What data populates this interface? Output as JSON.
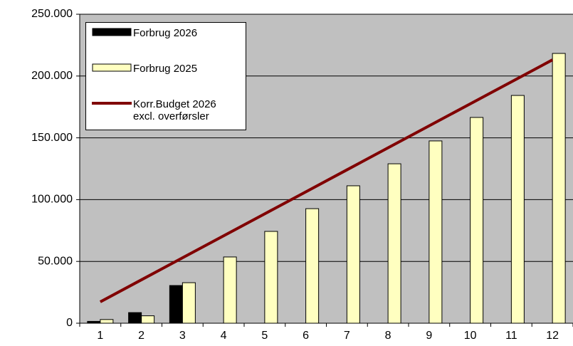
{
  "chart_data": {
    "type": "bar",
    "categories": [
      "1",
      "2",
      "3",
      "4",
      "5",
      "6",
      "7",
      "8",
      "9",
      "10",
      "11",
      "12"
    ],
    "series": [
      {
        "name": "Forbrug 2026",
        "type": "bar",
        "color": "#000000",
        "values": [
          1500,
          8600,
          30500,
          null,
          null,
          null,
          null,
          null,
          null,
          null,
          null,
          null
        ]
      },
      {
        "name": "Forbrug 2025",
        "type": "bar",
        "color": "#ffffc0",
        "values": [
          3000,
          6000,
          32800,
          53600,
          74300,
          92700,
          111200,
          129000,
          147500,
          166500,
          184300,
          218300
        ]
      },
      {
        "name": "Korr.Budget 2026 excl. overførsler",
        "type": "line",
        "color": "#800000",
        "values": [
          17300,
          35100,
          52900,
          70700,
          88500,
          106300,
          124100,
          141900,
          159700,
          177500,
          195300,
          213100
        ]
      }
    ],
    "ylim": [
      0,
      250000
    ],
    "yticks": [
      0,
      {
        "value": 50000,
        "label": "50.000"
      },
      {
        "value": 100000,
        "label": "100.000"
      },
      {
        "value": 150000,
        "label": "150.000"
      },
      {
        "value": 200000,
        "label": "200.000"
      },
      {
        "value": 250000,
        "label": "250.000"
      }
    ],
    "grid": true,
    "plot_background": "#c0c0c0",
    "legend": "upper left"
  }
}
